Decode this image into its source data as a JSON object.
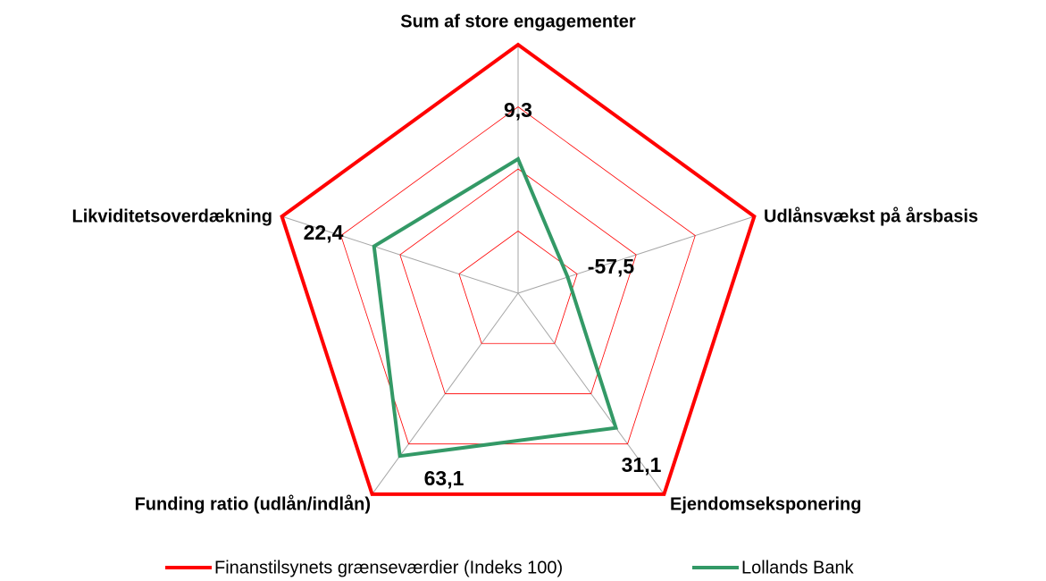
{
  "chart_data": {
    "type": "radar",
    "categories": [
      "Sum af store engagementer",
      "Udlånsvækst på årsbasis",
      "Ejendomseksponering",
      "Funding ratio (udlån/indlån)",
      "Likviditetsoverdækning"
    ],
    "series": [
      {
        "name": "Finanstilsynets grænseværdier (Indeks 100)",
        "color": "#ff0000",
        "values": [
          100,
          100,
          100,
          100,
          100
        ]
      },
      {
        "name": "Lollands Bank",
        "color": "#339966",
        "values": [
          54,
          21,
          67,
          81,
          61
        ]
      }
    ],
    "annotations": [
      "9,3",
      "-57,5",
      "31,1",
      "63,1",
      "22,4"
    ],
    "rlim": [
      0,
      100
    ],
    "rticks": [
      25,
      50,
      75,
      100
    ],
    "grid": true,
    "legend": "bottom"
  }
}
